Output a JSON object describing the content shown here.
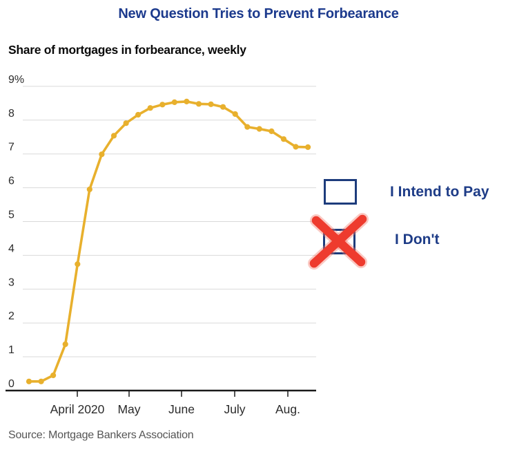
{
  "chart_data": {
    "type": "line",
    "title": "New Question Tries to Prevent Forbearance",
    "subtitle": "Share of mortgages in forbearance, weekly",
    "source": "Source: Mortgage Bankers Association",
    "grid": true,
    "x_axis": {
      "tick_labels": [
        "April 2020",
        "May",
        "June",
        "July",
        "Aug."
      ]
    },
    "y_axis": {
      "tick_labels": [
        "9%",
        "8",
        "7",
        "6",
        "5",
        "4",
        "3",
        "2",
        "1",
        "0"
      ],
      "min": 0,
      "max": 9,
      "unit": "%"
    },
    "series": [
      {
        "name": "Share of mortgages in forbearance",
        "color": "#E8B02D",
        "values": [
          0.27,
          0.27,
          0.45,
          1.37,
          3.74,
          5.95,
          6.99,
          7.54,
          7.91,
          8.16,
          8.36,
          8.46,
          8.53,
          8.55,
          8.48,
          8.47,
          8.39,
          8.18,
          7.8,
          7.74,
          7.67,
          7.44,
          7.21,
          7.2
        ]
      }
    ]
  },
  "legend": {
    "options": [
      {
        "label": "I Intend to Pay",
        "checked": false,
        "mark": "none"
      },
      {
        "label": "I Don't",
        "checked": true,
        "mark": "red-x"
      }
    ]
  },
  "colors": {
    "line": "#E8B02D",
    "title_navy": "#1C3A8D",
    "legend_navy": "#1E3C87",
    "checkbox_border": "#1D3C7C",
    "x_mark_red": "#EE3B2E",
    "gridline": "#D9D9D9",
    "axis": "#1A1A1A",
    "source_gray": "#555555"
  }
}
